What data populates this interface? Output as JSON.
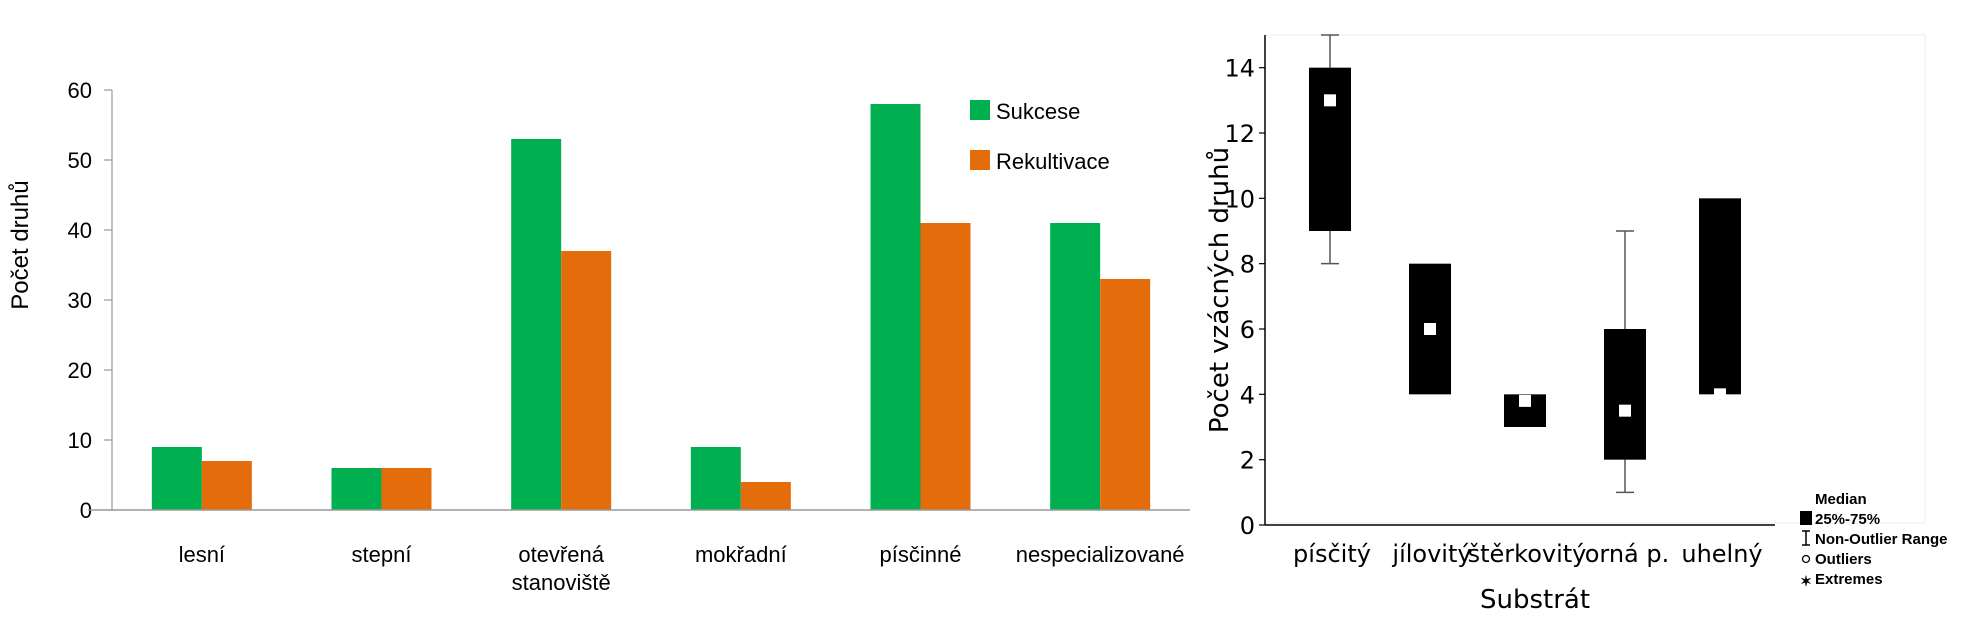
{
  "chart_data": [
    {
      "type": "bar",
      "ylabel": "Počet druhů",
      "ylim": [
        0,
        60
      ],
      "yticks": [
        0,
        10,
        20,
        30,
        40,
        50,
        60
      ],
      "categories": [
        "lesní",
        "stepní",
        "otevřená stanoviště",
        "mokřadní",
        "písčinné",
        "nespecializované"
      ],
      "category_lines": [
        [
          "lesní"
        ],
        [
          "stepní"
        ],
        [
          "otevřená",
          "stanoviště"
        ],
        [
          "mokřadní"
        ],
        [
          "písčinné"
        ],
        [
          "nespecializované"
        ]
      ],
      "series": [
        {
          "name": "Sukcese",
          "color": "#00b050",
          "values": [
            9,
            6,
            53,
            9,
            58,
            41
          ]
        },
        {
          "name": "Rekultivace",
          "color": "#e46c0a",
          "values": [
            7,
            6,
            37,
            4,
            41,
            33
          ]
        }
      ],
      "legend_position": "top-right",
      "grid": false
    },
    {
      "type": "box",
      "xlabel": "Substrát",
      "ylabel": "Počet vzácných druhů",
      "ylim": [
        0,
        15
      ],
      "yticks": [
        0,
        2,
        4,
        6,
        8,
        10,
        12,
        14
      ],
      "categories": [
        "písčitý",
        "jílovitý",
        "štěrkovitý",
        "orná p.",
        "uhelný"
      ],
      "boxes": [
        {
          "category": "písčitý",
          "q1": 9,
          "q3": 14,
          "median": 13,
          "whisker_low": 8,
          "whisker_high": 15
        },
        {
          "category": "jílovitý",
          "q1": 4,
          "q3": 8,
          "median": 6,
          "whisker_low": 4,
          "whisker_high": 8
        },
        {
          "category": "štěrkovitý",
          "q1": 3,
          "q3": 4,
          "median": 3.8,
          "whisker_low": 3,
          "whisker_high": 4
        },
        {
          "category": "orná p.",
          "q1": 2,
          "q3": 6,
          "median": 3.5,
          "whisker_low": 1,
          "whisker_high": 9
        },
        {
          "category": "uhelný",
          "q1": 4,
          "q3": 10,
          "median": 4,
          "whisker_low": 4,
          "whisker_high": 10
        }
      ],
      "legend": [
        "Median",
        "25%-75%",
        "Non-Outlier Range",
        "Outliers",
        "Extremes"
      ],
      "legend_position": "bottom-right",
      "grid": false
    }
  ]
}
